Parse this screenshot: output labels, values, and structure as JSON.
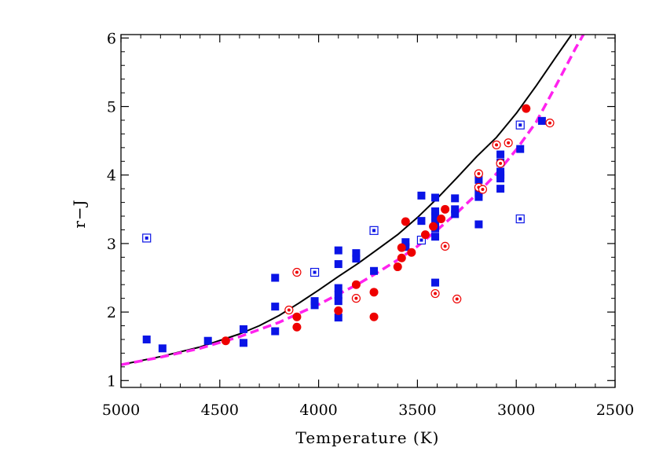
{
  "chart_data": {
    "type": "scatter",
    "xlabel": "Temperature (K)",
    "ylabel": "r−J",
    "xlim": [
      5000,
      2500
    ],
    "ylim": [
      0.9,
      6.05
    ],
    "x_reversed": true,
    "grid": false,
    "x_ticks": [
      5000,
      4500,
      4000,
      3500,
      3000,
      2500
    ],
    "y_ticks": [
      1,
      2,
      3,
      4,
      5,
      6
    ],
    "colors": {
      "blue": "#0a14e6",
      "red": "#ee0000",
      "black_curve": "#000000",
      "magenta_curve": "#ff22ee"
    },
    "series": [
      {
        "marker": "filled-square",
        "color": "#0a14e6",
        "points": [
          [
            4870,
            1.6
          ],
          [
            4790,
            1.47
          ],
          [
            4560,
            1.58
          ],
          [
            4380,
            1.55
          ],
          [
            4380,
            1.75
          ],
          [
            4220,
            1.72
          ],
          [
            4220,
            2.08
          ],
          [
            4220,
            2.5
          ],
          [
            4020,
            2.1
          ],
          [
            4020,
            2.16
          ],
          [
            3900,
            1.92
          ],
          [
            3900,
            2.16
          ],
          [
            3900,
            2.25
          ],
          [
            3900,
            2.35
          ],
          [
            3900,
            2.7
          ],
          [
            3900,
            2.9
          ],
          [
            3810,
            2.78
          ],
          [
            3810,
            2.86
          ],
          [
            3720,
            2.6
          ],
          [
            3560,
            2.95
          ],
          [
            3560,
            3.02
          ],
          [
            3480,
            3.33
          ],
          [
            3480,
            3.7
          ],
          [
            3410,
            3.1
          ],
          [
            3410,
            3.22
          ],
          [
            3410,
            3.3
          ],
          [
            3410,
            3.4
          ],
          [
            3410,
            3.47
          ],
          [
            3410,
            3.67
          ],
          [
            3410,
            2.43
          ],
          [
            3310,
            3.43
          ],
          [
            3310,
            3.5
          ],
          [
            3310,
            3.66
          ],
          [
            3190,
            3.28
          ],
          [
            3190,
            3.68
          ],
          [
            3190,
            3.74
          ],
          [
            3190,
            3.8
          ],
          [
            3190,
            3.93
          ],
          [
            3080,
            3.8
          ],
          [
            3080,
            3.95
          ],
          [
            3080,
            4.0
          ],
          [
            3080,
            4.05
          ],
          [
            3080,
            4.18
          ],
          [
            3080,
            4.3
          ],
          [
            2980,
            4.38
          ],
          [
            2870,
            4.79
          ]
        ]
      },
      {
        "marker": "open-square-dot",
        "color": "#0a14e6",
        "points": [
          [
            4870,
            3.08
          ],
          [
            4020,
            2.58
          ],
          [
            3720,
            3.19
          ],
          [
            3480,
            3.05
          ],
          [
            2980,
            3.36
          ],
          [
            2980,
            4.73
          ]
        ]
      },
      {
        "marker": "filled-circle",
        "color": "#ee0000",
        "points": [
          [
            4470,
            1.58
          ],
          [
            4110,
            1.78
          ],
          [
            4110,
            1.93
          ],
          [
            3900,
            2.02
          ],
          [
            3810,
            2.4
          ],
          [
            3720,
            1.93
          ],
          [
            3720,
            2.29
          ],
          [
            3600,
            2.66
          ],
          [
            3580,
            2.79
          ],
          [
            3580,
            2.94
          ],
          [
            3560,
            3.32
          ],
          [
            3530,
            2.87
          ],
          [
            3460,
            3.13
          ],
          [
            3420,
            3.25
          ],
          [
            3380,
            3.36
          ],
          [
            3360,
            3.5
          ],
          [
            2950,
            4.97
          ]
        ]
      },
      {
        "marker": "open-circle-dot",
        "color": "#ee0000",
        "points": [
          [
            4150,
            2.03
          ],
          [
            4110,
            2.58
          ],
          [
            3810,
            2.2
          ],
          [
            3410,
            2.27
          ],
          [
            3360,
            2.96
          ],
          [
            3300,
            2.19
          ],
          [
            3190,
            3.82
          ],
          [
            3190,
            4.02
          ],
          [
            3170,
            3.79
          ],
          [
            3100,
            4.44
          ],
          [
            3080,
            4.17
          ],
          [
            3040,
            4.47
          ],
          [
            2830,
            4.76
          ]
        ]
      }
    ],
    "curves": [
      {
        "style": "solid",
        "color": "#000000",
        "points": [
          [
            5000,
            1.23
          ],
          [
            4800,
            1.35
          ],
          [
            4600,
            1.49
          ],
          [
            4400,
            1.68
          ],
          [
            4300,
            1.8
          ],
          [
            4200,
            1.95
          ],
          [
            4100,
            2.13
          ],
          [
            4000,
            2.32
          ],
          [
            3900,
            2.52
          ],
          [
            3800,
            2.71
          ],
          [
            3700,
            2.92
          ],
          [
            3600,
            3.13
          ],
          [
            3500,
            3.38
          ],
          [
            3400,
            3.66
          ],
          [
            3300,
            3.96
          ],
          [
            3200,
            4.27
          ],
          [
            3100,
            4.55
          ],
          [
            3000,
            4.9
          ],
          [
            2900,
            5.3
          ],
          [
            2800,
            5.72
          ],
          [
            2720,
            6.05
          ]
        ]
      },
      {
        "style": "dashed",
        "color": "#ff22ee",
        "points": [
          [
            5000,
            1.23
          ],
          [
            4800,
            1.34
          ],
          [
            4600,
            1.47
          ],
          [
            4400,
            1.64
          ],
          [
            4200,
            1.85
          ],
          [
            4100,
            1.98
          ],
          [
            4000,
            2.11
          ],
          [
            3900,
            2.26
          ],
          [
            3800,
            2.41
          ],
          [
            3700,
            2.58
          ],
          [
            3600,
            2.76
          ],
          [
            3500,
            2.96
          ],
          [
            3400,
            3.2
          ],
          [
            3300,
            3.45
          ],
          [
            3200,
            3.72
          ],
          [
            3100,
            4.02
          ],
          [
            3000,
            4.37
          ],
          [
            2900,
            4.77
          ],
          [
            2800,
            5.3
          ],
          [
            2700,
            5.85
          ],
          [
            2660,
            6.05
          ]
        ]
      }
    ]
  }
}
